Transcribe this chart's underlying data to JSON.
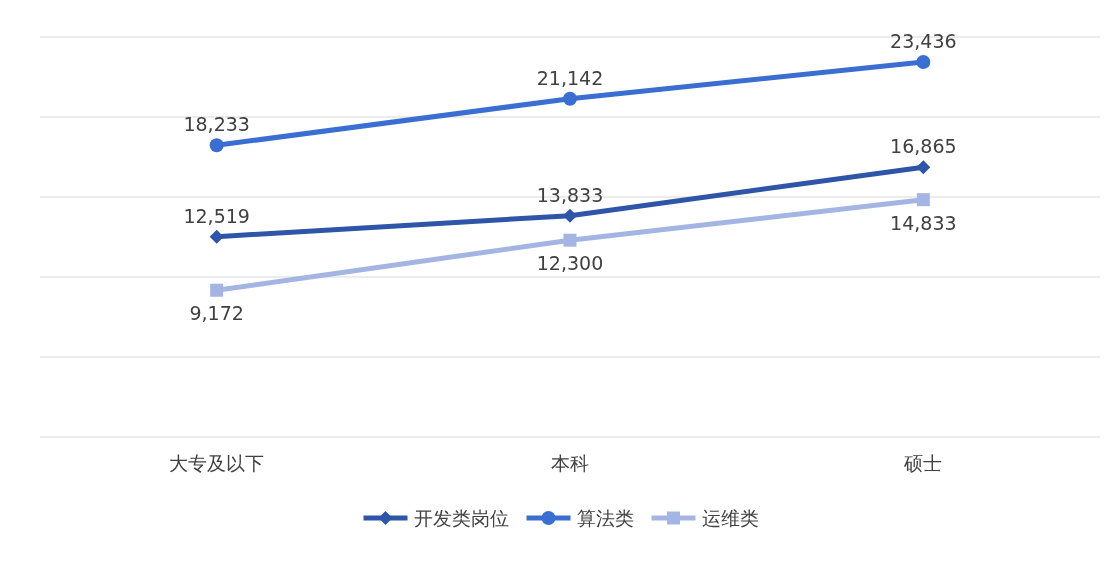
{
  "chart_data": {
    "type": "line",
    "categories": [
      "大专及以下",
      "本科",
      "硕士"
    ],
    "series": [
      {
        "name": "开发类岗位",
        "color": "#2f55a8",
        "marker": "diamond",
        "values": [
          12519,
          13833,
          16865
        ],
        "value_labels": [
          "12,519",
          "13,833",
          "16,865"
        ]
      },
      {
        "name": "算法类",
        "color": "#3a6fd1",
        "marker": "circle",
        "values": [
          18233,
          21142,
          23436
        ],
        "value_labels": [
          "18,233",
          "21,142",
          "23,436"
        ]
      },
      {
        "name": "运维类",
        "color": "#a4b5e4",
        "marker": "square",
        "values": [
          9172,
          12300,
          14833
        ],
        "value_labels": [
          "9,172",
          "12,300",
          "14,833"
        ]
      }
    ],
    "ylim": [
      0,
      25000
    ],
    "yticks": [
      {
        "value": 0,
        "label": null
      },
      {
        "value": 5000,
        "label": null
      },
      {
        "value": 10000,
        "label": null
      },
      {
        "value": 15000,
        "label": null
      },
      {
        "value": 20000,
        "label": null
      },
      {
        "value": 25000,
        "label": null
      }
    ],
    "tick_labels": "x",
    "grid": "y",
    "legend": "bottom",
    "line_style": "solid"
  }
}
